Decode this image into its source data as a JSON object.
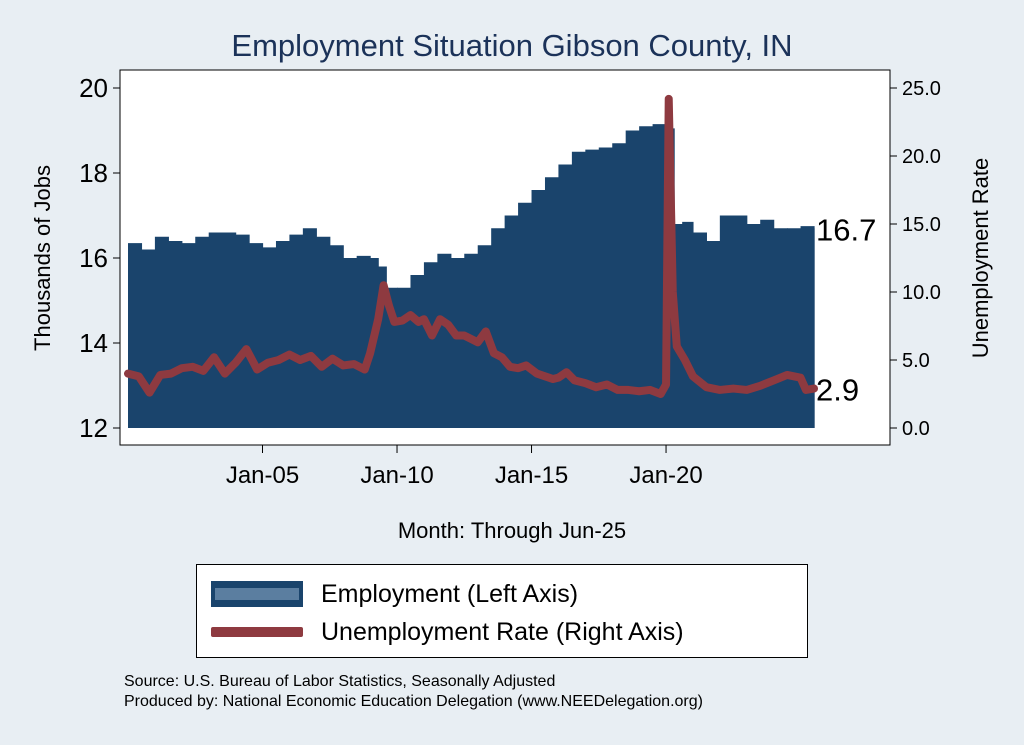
{
  "chart_data": {
    "type": "bar+line",
    "title": "Employment Situation Gibson  County, IN",
    "xlabel": "Month: Through Jun-25",
    "ylabel_left": "Thousands of Jobs",
    "ylabel_right": "Unemployment Rate",
    "x_ticks": [
      {
        "label": "Jan-05",
        "year": 2005
      },
      {
        "label": "Jan-10",
        "year": 2010
      },
      {
        "label": "Jan-15",
        "year": 2015
      },
      {
        "label": "Jan-20",
        "year": 2020
      }
    ],
    "x_range": [
      2000.0,
      2025.5
    ],
    "left_axis": {
      "range": [
        12,
        20
      ],
      "ticks": [
        "12",
        "14",
        "16",
        "18",
        "20"
      ]
    },
    "right_axis": {
      "range": [
        0,
        25
      ],
      "ticks": [
        "0.0",
        "5.0",
        "10.0",
        "15.0",
        "20.0",
        "25.0"
      ]
    },
    "series": [
      {
        "name": "Employment (Left Axis)",
        "type": "bar",
        "color": "#1a446c",
        "points": [
          [
            2000.0,
            16.35
          ],
          [
            2000.5,
            16.2
          ],
          [
            2001.0,
            16.5
          ],
          [
            2001.5,
            16.4
          ],
          [
            2002.0,
            16.35
          ],
          [
            2002.5,
            16.5
          ],
          [
            2003.0,
            16.6
          ],
          [
            2003.5,
            16.6
          ],
          [
            2004.0,
            16.55
          ],
          [
            2004.5,
            16.35
          ],
          [
            2005.0,
            16.25
          ],
          [
            2005.5,
            16.4
          ],
          [
            2006.0,
            16.55
          ],
          [
            2006.5,
            16.7
          ],
          [
            2007.0,
            16.5
          ],
          [
            2007.5,
            16.3
          ],
          [
            2008.0,
            16.0
          ],
          [
            2008.5,
            16.05
          ],
          [
            2009.0,
            16.0
          ],
          [
            2009.3,
            15.8
          ],
          [
            2009.6,
            15.3
          ],
          [
            2010.0,
            15.3
          ],
          [
            2010.5,
            15.6
          ],
          [
            2011.0,
            15.9
          ],
          [
            2011.5,
            16.1
          ],
          [
            2012.0,
            16.0
          ],
          [
            2012.5,
            16.1
          ],
          [
            2013.0,
            16.3
          ],
          [
            2013.5,
            16.7
          ],
          [
            2014.0,
            17.0
          ],
          [
            2014.5,
            17.3
          ],
          [
            2015.0,
            17.6
          ],
          [
            2015.5,
            17.9
          ],
          [
            2016.0,
            18.2
          ],
          [
            2016.5,
            18.5
          ],
          [
            2017.0,
            18.55
          ],
          [
            2017.5,
            18.6
          ],
          [
            2018.0,
            18.7
          ],
          [
            2018.5,
            19.0
          ],
          [
            2019.0,
            19.1
          ],
          [
            2019.5,
            19.15
          ],
          [
            2020.0,
            19.05
          ],
          [
            2020.3,
            16.8
          ],
          [
            2020.6,
            16.85
          ],
          [
            2021.0,
            16.6
          ],
          [
            2021.5,
            16.4
          ],
          [
            2022.0,
            17.0
          ],
          [
            2022.5,
            17.0
          ],
          [
            2023.0,
            16.8
          ],
          [
            2023.5,
            16.9
          ],
          [
            2024.0,
            16.7
          ],
          [
            2024.5,
            16.7
          ],
          [
            2025.0,
            16.75
          ],
          [
            2025.5,
            16.7
          ]
        ],
        "end_label": "16.7"
      },
      {
        "name": "Unemployment Rate (Right Axis)",
        "type": "line",
        "color": "#8e3a40",
        "points": [
          [
            2000.0,
            4.0
          ],
          [
            2000.4,
            3.8
          ],
          [
            2000.8,
            2.6
          ],
          [
            2001.2,
            3.9
          ],
          [
            2001.6,
            4.0
          ],
          [
            2002.0,
            4.4
          ],
          [
            2002.4,
            4.5
          ],
          [
            2002.8,
            4.2
          ],
          [
            2003.2,
            5.2
          ],
          [
            2003.6,
            4.0
          ],
          [
            2004.0,
            4.8
          ],
          [
            2004.4,
            5.8
          ],
          [
            2004.8,
            4.3
          ],
          [
            2005.2,
            4.8
          ],
          [
            2005.6,
            5.0
          ],
          [
            2006.0,
            5.4
          ],
          [
            2006.4,
            5.0
          ],
          [
            2006.8,
            5.3
          ],
          [
            2007.2,
            4.5
          ],
          [
            2007.6,
            5.1
          ],
          [
            2008.0,
            4.6
          ],
          [
            2008.4,
            4.7
          ],
          [
            2008.8,
            4.3
          ],
          [
            2009.0,
            5.5
          ],
          [
            2009.3,
            8.0
          ],
          [
            2009.5,
            10.5
          ],
          [
            2009.7,
            9.0
          ],
          [
            2009.9,
            7.8
          ],
          [
            2010.2,
            7.9
          ],
          [
            2010.5,
            8.3
          ],
          [
            2010.8,
            7.8
          ],
          [
            2011.0,
            8.0
          ],
          [
            2011.3,
            6.8
          ],
          [
            2011.6,
            8.0
          ],
          [
            2011.9,
            7.6
          ],
          [
            2012.2,
            6.8
          ],
          [
            2012.5,
            6.8
          ],
          [
            2012.8,
            6.5
          ],
          [
            2013.0,
            6.3
          ],
          [
            2013.3,
            7.1
          ],
          [
            2013.6,
            5.5
          ],
          [
            2013.9,
            5.2
          ],
          [
            2014.2,
            4.5
          ],
          [
            2014.5,
            4.4
          ],
          [
            2014.8,
            4.6
          ],
          [
            2015.2,
            4.0
          ],
          [
            2015.5,
            3.8
          ],
          [
            2015.8,
            3.6
          ],
          [
            2016.0,
            3.7
          ],
          [
            2016.3,
            4.1
          ],
          [
            2016.6,
            3.5
          ],
          [
            2017.0,
            3.3
          ],
          [
            2017.4,
            3.0
          ],
          [
            2017.8,
            3.2
          ],
          [
            2018.2,
            2.8
          ],
          [
            2018.6,
            2.8
          ],
          [
            2019.0,
            2.7
          ],
          [
            2019.4,
            2.8
          ],
          [
            2019.8,
            2.5
          ],
          [
            2020.0,
            3.2
          ],
          [
            2020.1,
            24.2
          ],
          [
            2020.25,
            10.0
          ],
          [
            2020.4,
            6.0
          ],
          [
            2020.7,
            5.0
          ],
          [
            2021.0,
            3.8
          ],
          [
            2021.5,
            3.0
          ],
          [
            2022.0,
            2.8
          ],
          [
            2022.5,
            2.9
          ],
          [
            2023.0,
            2.8
          ],
          [
            2023.5,
            3.1
          ],
          [
            2024.0,
            3.5
          ],
          [
            2024.5,
            3.9
          ],
          [
            2025.0,
            3.7
          ],
          [
            2025.2,
            2.8
          ],
          [
            2025.5,
            2.9
          ]
        ],
        "end_label": "2.9"
      }
    ],
    "legend_position": "bottom"
  },
  "legend": {
    "employment": "Employment (Left Axis)",
    "unemployment": "Unemployment Rate (Right Axis)"
  },
  "source": {
    "line1": "Source: U.S. Bureau of Labor Statistics, Seasonally Adjusted",
    "line2": "Produced by: National Economic Education Delegation (www.NEEDelegation.org)"
  },
  "colors": {
    "background": "#e8eef3",
    "plot_bg": "#ffffff",
    "employment": "#1a446c",
    "unemployment": "#8e3a40",
    "title": "#1b3259"
  }
}
